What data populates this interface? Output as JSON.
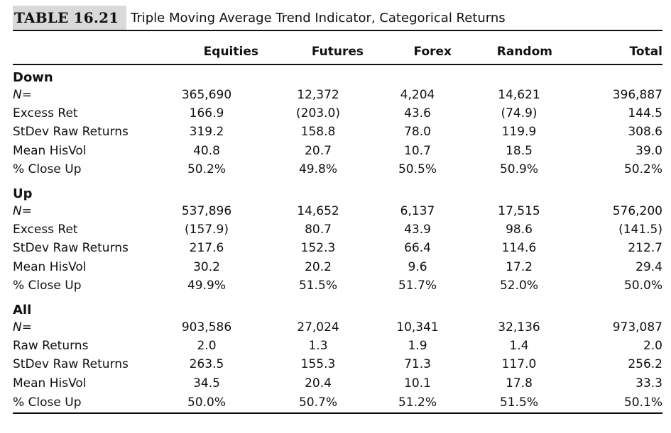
{
  "caption": {
    "table_number": "TABLE 16.21",
    "title": "Triple Moving Average Trend Indicator, Categorical Returns"
  },
  "columns": [
    "",
    "Equities",
    "Futures",
    "Forex",
    "Random",
    "Total"
  ],
  "sections": [
    {
      "name": "Down",
      "rows": [
        {
          "label": "N=",
          "values": [
            "365,690",
            "12,372",
            "4,204",
            "14,621",
            "396,887"
          ]
        },
        {
          "label": "Excess Ret",
          "values": [
            "166.9",
            "(203.0)",
            "43.6",
            "(74.9)",
            "144.5"
          ]
        },
        {
          "label": "StDev Raw Returns",
          "values": [
            "319.2",
            "158.8",
            "78.0",
            "119.9",
            "308.6"
          ]
        },
        {
          "label": "Mean HisVol",
          "values": [
            "40.8",
            "20.7",
            "10.7",
            "18.5",
            "39.0"
          ]
        },
        {
          "label": "% Close Up",
          "values": [
            "50.2%",
            "49.8%",
            "50.5%",
            "50.9%",
            "50.2%"
          ]
        }
      ]
    },
    {
      "name": "Up",
      "rows": [
        {
          "label": "N=",
          "values": [
            "537,896",
            "14,652",
            "6,137",
            "17,515",
            "576,200"
          ]
        },
        {
          "label": "Excess Ret",
          "values": [
            "(157.9)",
            "80.7",
            "43.9",
            "98.6",
            "(141.5)"
          ]
        },
        {
          "label": "StDev Raw Returns",
          "values": [
            "217.6",
            "152.3",
            "66.4",
            "114.6",
            "212.7"
          ]
        },
        {
          "label": "Mean HisVol",
          "values": [
            "30.2",
            "20.2",
            "9.6",
            "17.2",
            "29.4"
          ]
        },
        {
          "label": "% Close Up",
          "values": [
            "49.9%",
            "51.5%",
            "51.7%",
            "52.0%",
            "50.0%"
          ]
        }
      ]
    },
    {
      "name": "All",
      "rows": [
        {
          "label": "N=",
          "values": [
            "903,586",
            "27,024",
            "10,341",
            "32,136",
            "973,087"
          ]
        },
        {
          "label": "Raw Returns",
          "values": [
            "2.0",
            "1.3",
            "1.9",
            "1.4",
            "2.0"
          ]
        },
        {
          "label": "StDev Raw Returns",
          "values": [
            "263.5",
            "155.3",
            "71.3",
            "117.0",
            "256.2"
          ]
        },
        {
          "label": "Mean HisVol",
          "values": [
            "34.5",
            "20.4",
            "10.1",
            "17.8",
            "33.3"
          ]
        },
        {
          "label": "% Close Up",
          "values": [
            "50.0%",
            "50.7%",
            "51.2%",
            "51.5%",
            "50.1%"
          ]
        }
      ]
    }
  ]
}
